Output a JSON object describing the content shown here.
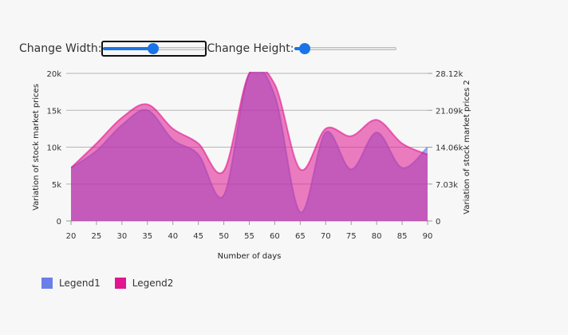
{
  "controls": {
    "width_label": "Change Width:",
    "height_label": "Change Height:",
    "width_value": 0.5,
    "height_value": 0.1
  },
  "legend": [
    {
      "label": "Legend1",
      "color": "#6b7fe8"
    },
    {
      "label": "Legend2",
      "color": "#e0158f"
    }
  ],
  "chart_data": {
    "type": "area",
    "xlabel": "Number of days",
    "ylabel_left": "Variation of stock market prices",
    "ylabel_right": "Variation of stock market prices 2",
    "x": [
      20,
      25,
      30,
      35,
      40,
      45,
      50,
      55,
      60,
      65,
      70,
      75,
      80,
      85,
      90
    ],
    "xlim": [
      20,
      90
    ],
    "y_left_lim": [
      0,
      20000
    ],
    "y_left_ticks": [
      "0",
      "5k",
      "10k",
      "15k",
      "20k"
    ],
    "y_right_lim": [
      0,
      28120
    ],
    "y_right_ticks": [
      "0",
      "7.03k",
      "14.06k",
      "21.09k",
      "28.12k"
    ],
    "grid": true,
    "legend_position": "bottom-left",
    "series": [
      {
        "color": "#6b7fe8",
        "axis": "left",
        "values": [
          7200,
          9500,
          13000,
          15000,
          11000,
          9000,
          3500,
          20000,
          17000,
          1200,
          12000,
          7000,
          12000,
          7200,
          10000
        ]
      },
      {
        "color": "#e0158f",
        "axis": "left",
        "values": [
          7200,
          10500,
          14000,
          15800,
          12500,
          10500,
          6800,
          20000,
          18500,
          7000,
          12500,
          11500,
          13700,
          10500,
          9000
        ]
      }
    ]
  }
}
